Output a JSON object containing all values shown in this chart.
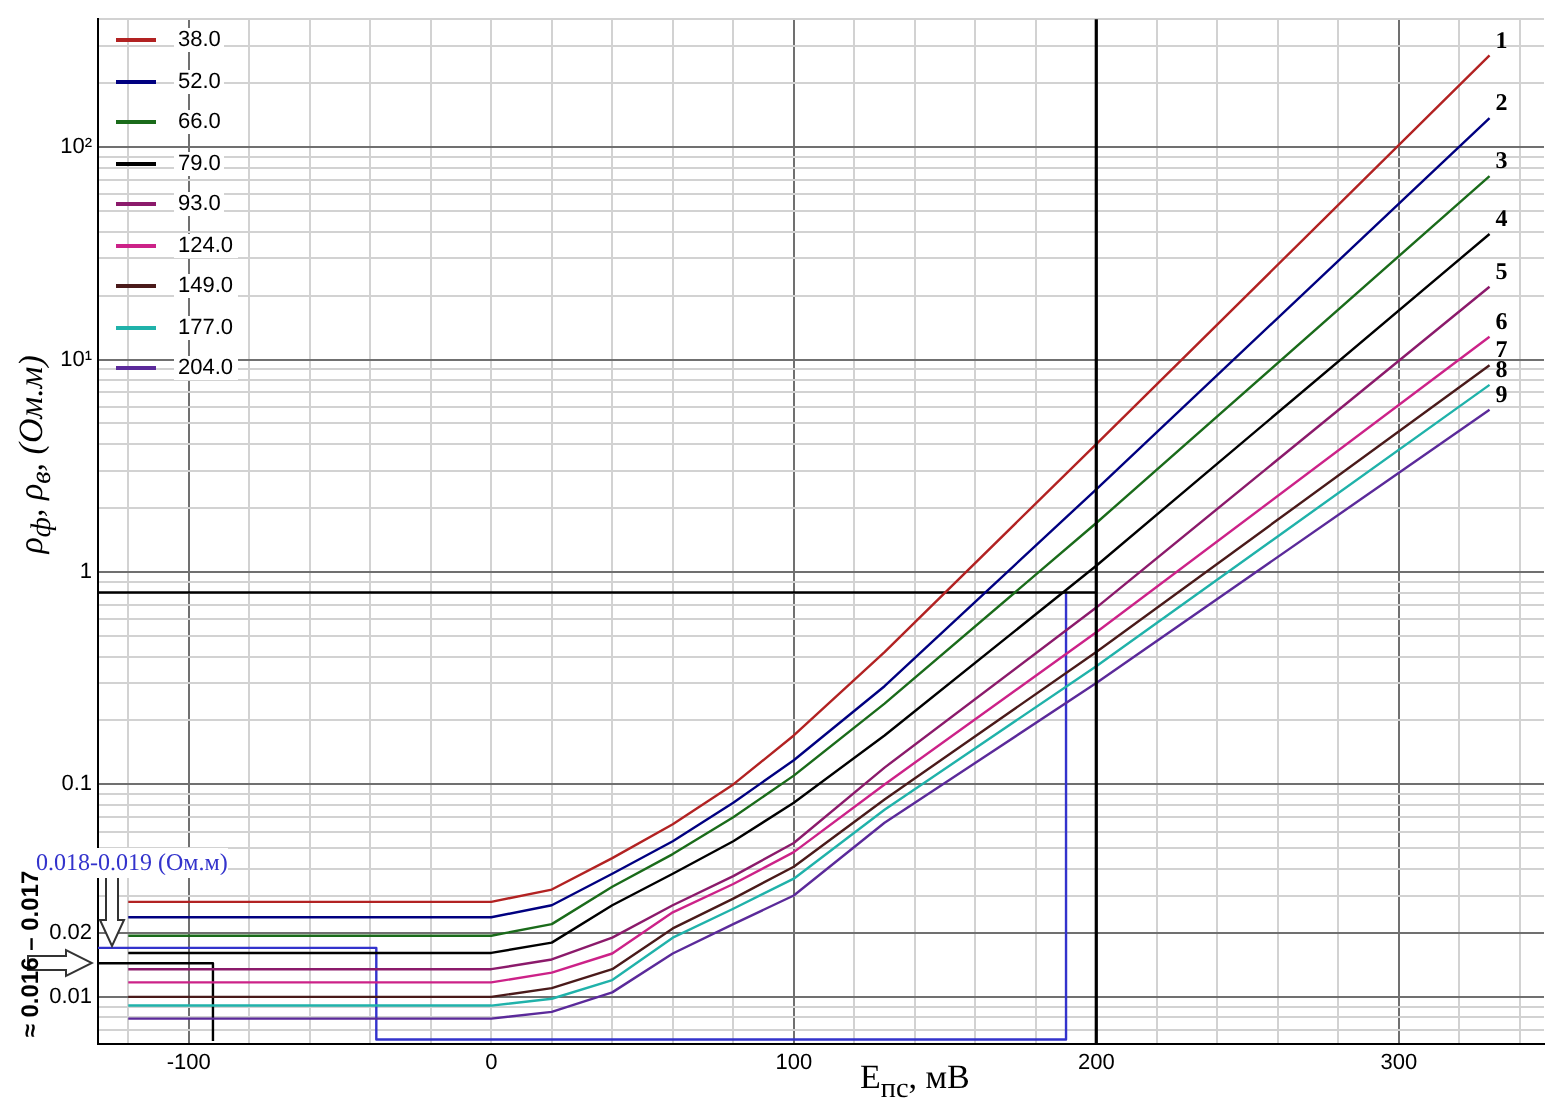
{
  "chart_data": {
    "type": "line",
    "xlabel": "E$_{пс}$, мВ",
    "ylabel": "ρ$_{ф}$, ρ$_{в}$, (Ом.м)",
    "log": "y",
    "grid": true,
    "legend": "top left",
    "xlim": [
      -130,
      348
    ],
    "ylim": [
      0.006,
      400
    ],
    "xticks": [
      {
        "value": -120,
        "label": null
      },
      -100,
      {
        "value": -80,
        "label": null
      },
      {
        "value": -60,
        "label": null
      },
      {
        "value": -40,
        "label": null
      },
      {
        "value": -20,
        "label": null
      },
      0,
      {
        "value": 20,
        "label": null
      },
      {
        "value": 40,
        "label": null
      },
      {
        "value": 60,
        "label": null
      },
      {
        "value": 80,
        "label": null
      },
      100,
      {
        "value": 120,
        "label": null
      },
      {
        "value": 140,
        "label": null
      },
      {
        "value": 160,
        "label": null
      },
      {
        "value": 180,
        "label": null
      },
      200,
      {
        "value": 220,
        "label": null
      },
      {
        "value": 240,
        "label": null
      },
      {
        "value": 260,
        "label": null
      },
      {
        "value": 280,
        "label": null
      },
      300,
      {
        "value": 320,
        "label": null
      },
      {
        "value": 340,
        "label": null
      }
    ],
    "yticks": [
      {
        "value": 0.006,
        "label": null
      },
      {
        "value": 0.007,
        "label": null
      },
      {
        "value": 0.008,
        "label": null
      },
      {
        "value": 0.009,
        "label": null
      },
      0.01,
      0.02,
      {
        "value": 0.03,
        "label": null
      },
      {
        "value": 0.04,
        "label": null
      },
      {
        "value": 0.05,
        "label": null
      },
      {
        "value": 0.06,
        "label": null
      },
      {
        "value": 0.07,
        "label": null
      },
      {
        "value": 0.08,
        "label": null
      },
      {
        "value": 0.09,
        "label": null
      },
      0.1,
      {
        "value": 0.2,
        "label": null
      },
      {
        "value": 0.3,
        "label": null
      },
      {
        "value": 0.4,
        "label": null
      },
      {
        "value": 0.5,
        "label": null
      },
      {
        "value": 0.6,
        "label": null
      },
      {
        "value": 0.7,
        "label": null
      },
      {
        "value": 0.8,
        "label": null
      },
      {
        "value": 0.9,
        "label": null
      },
      1,
      {
        "value": 2,
        "label": null
      },
      {
        "value": 3,
        "label": null
      },
      {
        "value": 4,
        "label": null
      },
      {
        "value": 5,
        "label": null
      },
      {
        "value": 6,
        "label": null
      },
      {
        "value": 7,
        "label": null
      },
      {
        "value": 8,
        "label": null
      },
      {
        "value": 9,
        "label": null
      },
      {
        "value": 10,
        "label": "10¹"
      },
      {
        "value": 20,
        "label": null
      },
      {
        "value": 30,
        "label": null
      },
      {
        "value": 40,
        "label": null
      },
      {
        "value": 50,
        "label": null
      },
      {
        "value": 60,
        "label": null
      },
      {
        "value": 70,
        "label": null
      },
      {
        "value": 80,
        "label": null
      },
      {
        "value": 90,
        "label": null
      },
      {
        "value": 100,
        "label": "10²"
      },
      {
        "value": 200,
        "label": null
      },
      {
        "value": 300,
        "label": null
      },
      {
        "value": 400,
        "label": null
      }
    ],
    "x": [
      -120,
      0,
      20,
      40,
      60,
      80,
      100,
      130,
      200,
      330
    ],
    "series": [
      {
        "name": "38.0",
        "color": "#b22222",
        "values": [
          0.028,
          0.028,
          0.032,
          0.045,
          0.065,
          0.1,
          0.17,
          0.42,
          4.0,
          270
        ]
      },
      {
        "name": "52.0",
        "color": "#000080",
        "values": [
          0.0237,
          0.0237,
          0.027,
          0.038,
          0.054,
          0.082,
          0.13,
          0.29,
          2.45,
          137
        ]
      },
      {
        "name": "66.0",
        "color": "#1a6b1a",
        "values": [
          0.0194,
          0.0194,
          0.022,
          0.033,
          0.047,
          0.07,
          0.11,
          0.24,
          1.7,
          73
        ]
      },
      {
        "name": "79.0",
        "color": "#000000",
        "values": [
          0.0161,
          0.0161,
          0.018,
          0.027,
          0.038,
          0.054,
          0.082,
          0.17,
          1.07,
          39
        ]
      },
      {
        "name": "93.0",
        "color": "#8b1a6b",
        "values": [
          0.0135,
          0.0135,
          0.015,
          0.019,
          0.027,
          0.037,
          0.053,
          0.12,
          0.68,
          22
        ]
      },
      {
        "name": "124.0",
        "color": "#cc2288",
        "values": [
          0.0117,
          0.0117,
          0.013,
          0.016,
          0.025,
          0.034,
          0.048,
          0.1,
          0.52,
          12.8
        ]
      },
      {
        "name": "149.0",
        "color": "#4a1a1a",
        "values": [
          0.01,
          0.01,
          0.011,
          0.0135,
          0.021,
          0.029,
          0.041,
          0.085,
          0.42,
          9.4
        ]
      },
      {
        "name": "177.0",
        "color": "#20b2aa",
        "values": [
          0.0091,
          0.0091,
          0.0098,
          0.012,
          0.019,
          0.026,
          0.036,
          0.076,
          0.36,
          7.6
        ]
      },
      {
        "name": "204.0",
        "color": "#5b2a9a",
        "values": [
          0.0079,
          0.0079,
          0.0085,
          0.0105,
          0.016,
          0.022,
          0.03,
          0.066,
          0.3,
          5.8
        ]
      },
      {
        "type": "line",
        "color": "#000000",
        "x": [
          -130,
          200
        ],
        "values": [
          0.8,
          0.8
        ]
      },
      {
        "type": "line",
        "color": "#3333cc",
        "x": [
          190,
          190,
          -38,
          -38,
          -130
        ],
        "values": [
          0.8,
          0.0063,
          0.0063,
          0.017,
          0.017
        ]
      },
      {
        "type": "line",
        "color": "#000000",
        "x": [
          -92,
          -92,
          -130
        ],
        "values": [
          0.0062,
          0.0144,
          0.0144
        ]
      }
    ],
    "ref_lines": [
      {
        "axis": "x",
        "value": 200,
        "color": "#000000"
      }
    ],
    "annotations": [
      "0.018-0.019 (Ом.м)",
      "≈ 0.016 – 0.017",
      "1",
      "2",
      "3",
      "4",
      "5",
      "6",
      "7",
      "8",
      "9"
    ]
  }
}
